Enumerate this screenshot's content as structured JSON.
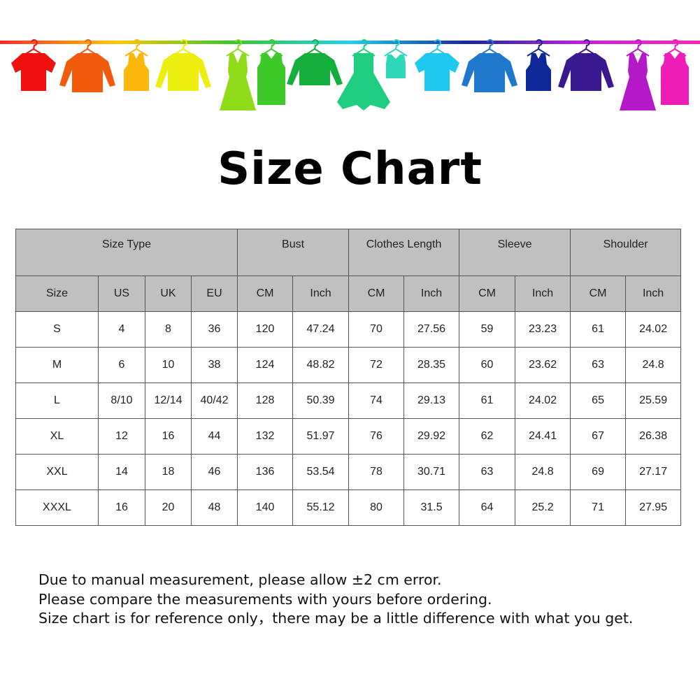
{
  "banner": {
    "garment_colors": [
      "#f01010",
      "#f25a0c",
      "#fbb80a",
      "#ecef10",
      "#8fdb1a",
      "#3ecb2a",
      "#14ae3c",
      "#1fcc80",
      "#2ed8b8",
      "#1ec8ee",
      "#1f78cc",
      "#0e2898",
      "#3a1890",
      "#b418c8",
      "#f01cb8"
    ],
    "rail_gradient": [
      "#ff2a2a",
      "#ffc800",
      "#36c82a",
      "#1ed2f0",
      "#1428a0",
      "#c81ee0",
      "#ff28b4"
    ]
  },
  "title": "Size Chart",
  "table": {
    "group_headers": [
      "Size Type",
      "Bust",
      "Clothes Length",
      "Sleeve",
      "Shoulder"
    ],
    "sub_headers": [
      "Size",
      "US",
      "UK",
      "EU",
      "CM",
      "Inch",
      "CM",
      "Inch",
      "CM",
      "Inch",
      "CM",
      "Inch"
    ],
    "rows": [
      [
        "S",
        "4",
        "8",
        "36",
        "120",
        "47.24",
        "70",
        "27.56",
        "59",
        "23.23",
        "61",
        "24.02"
      ],
      [
        "M",
        "6",
        "10",
        "38",
        "124",
        "48.82",
        "72",
        "28.35",
        "60",
        "23.62",
        "63",
        "24.8"
      ],
      [
        "L",
        "8/10",
        "12/14",
        "40/42",
        "128",
        "50.39",
        "74",
        "29.13",
        "61",
        "24.02",
        "65",
        "25.59"
      ],
      [
        "XL",
        "12",
        "16",
        "44",
        "132",
        "51.97",
        "76",
        "29.92",
        "62",
        "24.41",
        "67",
        "26.38"
      ],
      [
        "XXL",
        "14",
        "18",
        "46",
        "136",
        "53.54",
        "78",
        "30.71",
        "63",
        "24.8",
        "69",
        "27.17"
      ],
      [
        "XXXL",
        "16",
        "20",
        "48",
        "140",
        "55.12",
        "80",
        "31.5",
        "64",
        "25.2",
        "71",
        "27.95"
      ]
    ]
  },
  "notes": [
    "Due to manual measurement, please allow ±2 cm error.",
    "Please compare the measurements with yours before ordering.",
    "Size chart is for reference only，there may be a little difference with what you get."
  ]
}
